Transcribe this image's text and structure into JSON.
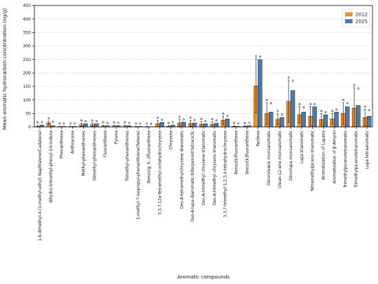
{
  "chart_data": {
    "type": "bar",
    "title": "",
    "xlabel": "Aromatic compounds",
    "ylabel": "Mean aromatic hydrocarbon concentration (ng/g)",
    "ylim": [
      0,
      450
    ],
    "yticks": [
      0,
      50,
      100,
      150,
      200,
      250,
      300,
      350,
      400,
      450
    ],
    "grid": "horizontal dotted",
    "legend_position": "top-right",
    "colors": {
      "2012": "#f28e2b",
      "2025": "#4e79a7"
    },
    "categories": [
      "1,6-dimethyl-4-(1-methyl-ethyl) Naphtalene(Cadalene)",
      "dihydro-trimethyl-phenyl-1H-Indene",
      "Phenanthrene",
      "Anthracene",
      "Methyl-phenanthrenes",
      "Dimethyl-phenanthrenes",
      "Fluoranthene",
      "Pyrene",
      "Trimethyl-phenanthrenes",
      "1-methyl-7-isopropyl-phenanthrene(Retene)",
      "Benzo(g, h, i)fluoranthene",
      "3,3,7,12a-Tetramethyl-octahydrochrysene",
      "Chrysene",
      "Des-A-tetramethylchrysene diaromatic",
      "Des-A-lupa-diaromatic-triterpenoid tetracicllc",
      "Des-A-trimethyl chrysene triaromatic",
      "Des-A-trimethyl chryseno triaromatic",
      "3,3,7-trimethyl-1,2,3,4-tetrahydrochrysene",
      "Benzo[b]fluoranthene",
      "Benzo[k]fluoranthene",
      "Perilene",
      "Dinoroleane monoaromatic",
      "Olean-12-ene monoaromatic",
      "Dinorlupa monoaromatic",
      "Lupa triaromatic",
      "Tetramethylpiceno triaromatic",
      "Aromatization of  Lupane",
      "Aromatization of  β-Amyrin",
      "Trimethylpicenotetraromatic",
      "Trimethylpicenotetraromatic",
      "Lupa tetraaromatic"
    ],
    "series": [
      {
        "name": "2012",
        "values": [
          2,
          15,
          1,
          1,
          8,
          8,
          3,
          3,
          3,
          1,
          1,
          12,
          2,
          15,
          13,
          10,
          10,
          25,
          2,
          2,
          152,
          50,
          28,
          95,
          45,
          40,
          28,
          30,
          50,
          70,
          35
        ],
        "errors": [
          4,
          6,
          1,
          1,
          6,
          6,
          3,
          3,
          3,
          1,
          1,
          12,
          2,
          13,
          11,
          9,
          9,
          15,
          2,
          2,
          100,
          40,
          20,
          78,
          30,
          35,
          22,
          20,
          40,
          75,
          30
        ]
      },
      {
        "name": "2025",
        "values": [
          7,
          5,
          2,
          2,
          12,
          12,
          5,
          5,
          5,
          2,
          1,
          17,
          7,
          18,
          15,
          12,
          14,
          30,
          2,
          5,
          250,
          55,
          35,
          135,
          55,
          75,
          45,
          55,
          75,
          80,
          40
        ]
      }
    ],
    "significance": {
      "2012": [
        "b",
        "a",
        "a",
        "a",
        "a",
        "a",
        "b",
        "b",
        "b",
        "a",
        "a",
        "a",
        "b",
        "a",
        "a",
        "b",
        "a",
        "a",
        "b",
        "b",
        "a",
        "a",
        "a",
        "a",
        "a",
        "a",
        "a",
        "a",
        "a",
        "a",
        "a"
      ],
      "2025": [
        "a",
        "a",
        "a",
        "a",
        "a",
        "a",
        "a",
        "a",
        "a",
        "a",
        "a",
        "a",
        "a",
        "a",
        "a",
        "a",
        "a",
        "a",
        "a",
        "a",
        "a",
        "a",
        "a",
        "a",
        "a",
        "a",
        "a",
        "a",
        "a",
        "a",
        "a"
      ]
    }
  }
}
